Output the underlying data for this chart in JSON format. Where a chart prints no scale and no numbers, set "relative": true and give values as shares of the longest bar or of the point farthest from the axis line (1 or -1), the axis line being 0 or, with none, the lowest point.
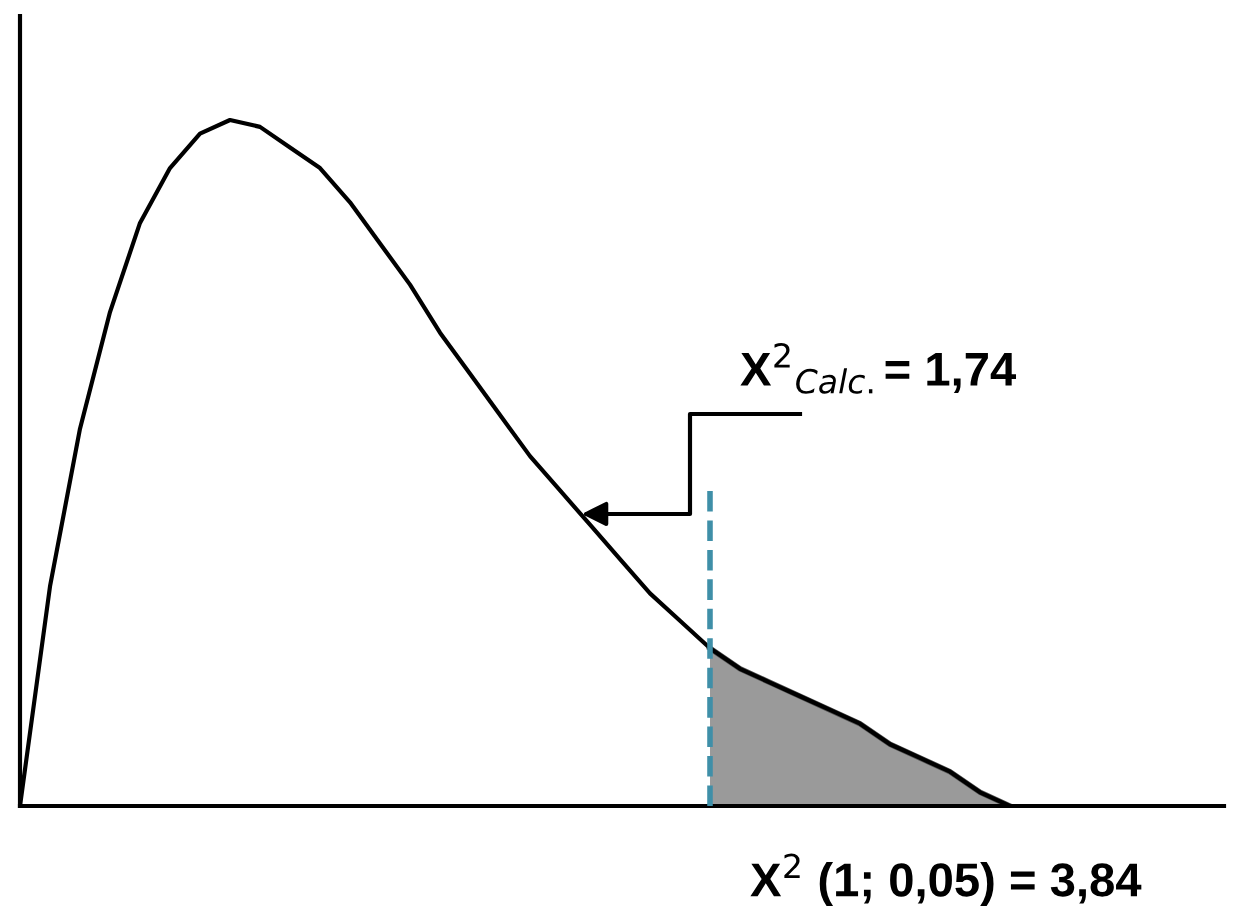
{
  "chart_data": {
    "type": "line",
    "relative": true,
    "marker": "none",
    "line_style": "solid",
    "categories": [
      null,
      null,
      null,
      null,
      null,
      null,
      null,
      null,
      null,
      null,
      null,
      null,
      null,
      null,
      null,
      null,
      null,
      null,
      null,
      null,
      null,
      null,
      null,
      null,
      null,
      null,
      null,
      null,
      null,
      null,
      null,
      null,
      null,
      null
    ],
    "series": [
      {
        "color": "#000000",
        "values": [
          0,
          0.32,
          0.55,
          0.72,
          0.85,
          0.93,
          0.98,
          1.0,
          0.99,
          0.96,
          0.93,
          0.88,
          0.82,
          0.76,
          0.69,
          0.63,
          0.57,
          0.51,
          0.46,
          0.41,
          0.36,
          0.31,
          0.27,
          0.23,
          0.2,
          0.18,
          0.16,
          0.14,
          0.12,
          0.09,
          0.07,
          0.05,
          0.02,
          0
        ]
      },
      {
        "type": "area",
        "color": "#9a9a9a",
        "values": [
          null,
          null,
          null,
          null,
          null,
          null,
          null,
          null,
          null,
          null,
          null,
          null,
          null,
          null,
          null,
          null,
          null,
          null,
          null,
          null,
          null,
          null,
          null,
          0.23,
          0.2,
          0.18,
          0.16,
          0.14,
          0.12,
          0.09,
          0.07,
          0.05,
          0.02,
          0
        ]
      }
    ],
    "annotations": [
      "X$^{2}$$_{Calc.}$= 1,74",
      "X$^{2}$ (1; 0,05) = 3,84"
    ]
  }
}
